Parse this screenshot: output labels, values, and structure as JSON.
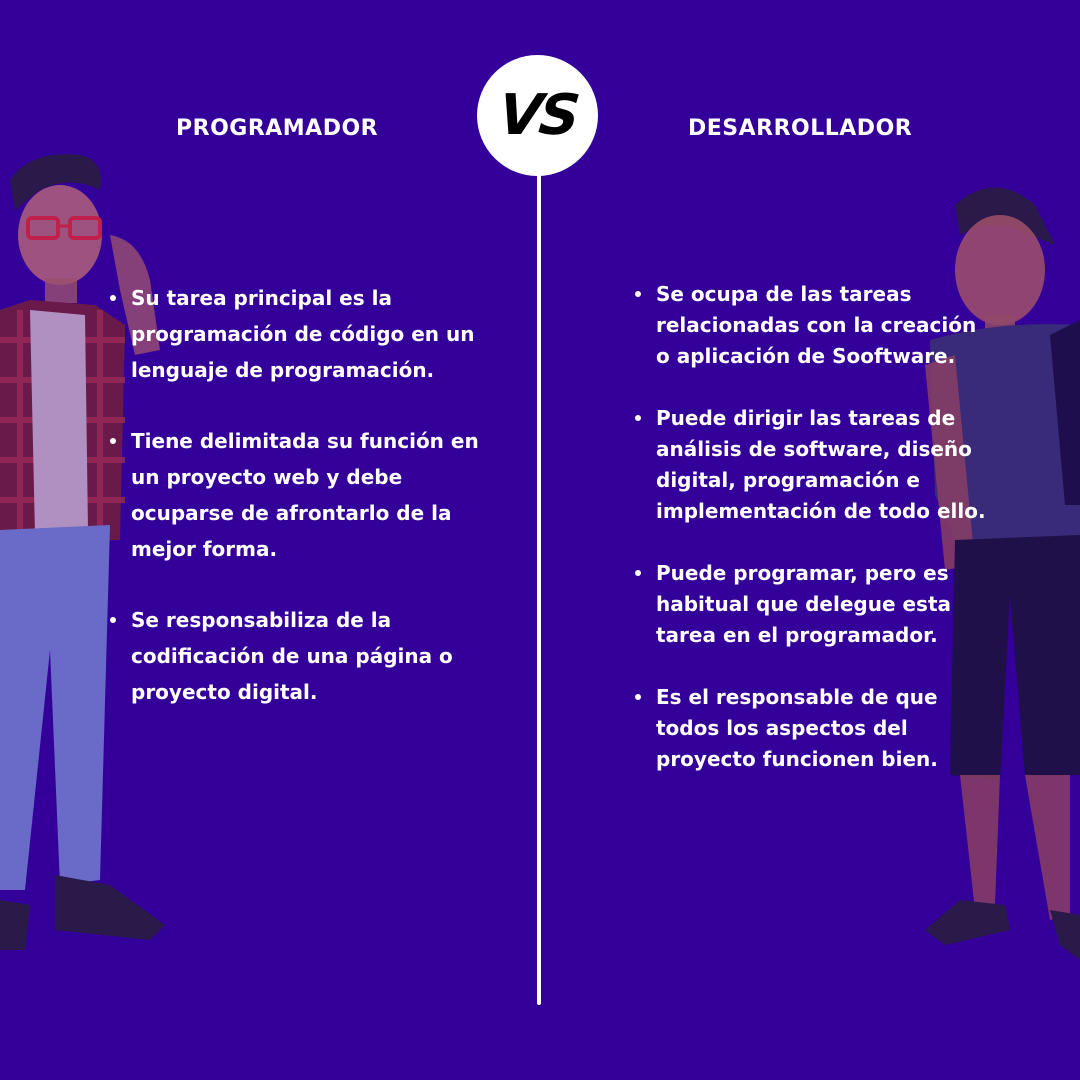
{
  "badge": {
    "text": "VS"
  },
  "left_column": {
    "title": "PROGRAMADOR",
    "items": [
      "Su tarea principal es la programación de código en un lenguaje de programación.",
      "Tiene delimitada su función en un proyecto web y debe ocuparse de afrontarlo de la mejor forma.",
      "Se responsabiliza de la codificación de una página o proyecto digital."
    ]
  },
  "right_column": {
    "title": "DESARROLLADOR",
    "items": [
      "Se ocupa de las tareas relacionadas con la creación o aplicación de Sooftware.",
      "Puede dirigir las tareas de análisis de software, diseño digital, programación e implementación de todo ello.",
      "Puede programar, pero es habitual que delegue esta tarea en el programador.",
      "Es el responsable de que todos los aspectos del proyecto funcionen bien."
    ]
  },
  "colors": {
    "background": "#34009a",
    "text": "#ffffff",
    "badge": "#ffffff"
  },
  "illustrations": [
    "programmer-character",
    "developer-character"
  ]
}
